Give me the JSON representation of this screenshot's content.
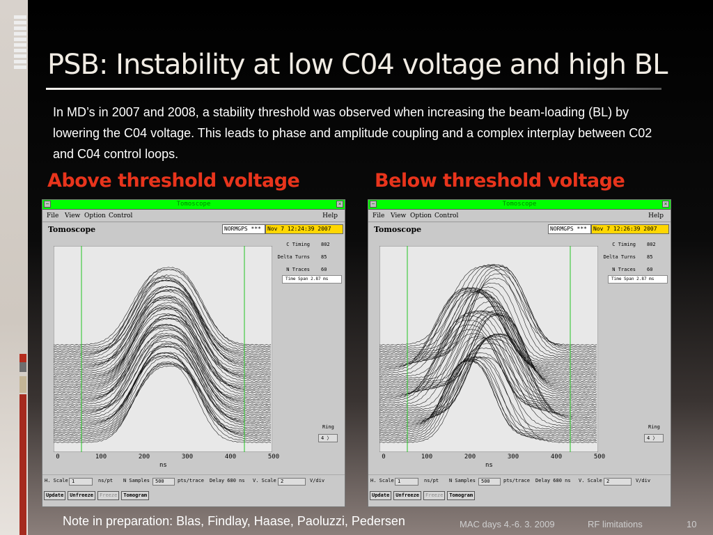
{
  "slide": {
    "title": "PSB: Instability at low C04 voltage and high BL",
    "intro": "In MD’s in 2007 and 2008, a stability threshold was observed when increasing the beam-loading  (BL) by lowering the C04 voltage. This leads to phase and amplitude coupling and a complex interplay between C02 and C04 control loops.",
    "label_above": "Above threshold voltage",
    "label_below": "Below threshold voltage",
    "note": "Note in preparation: Blas, Findlay, Haase, Paoluzzi, Pedersen",
    "footer_event": "MAC days 4.-6. 3. 2009",
    "footer_topic": "RF limitations",
    "footer_page": "10"
  },
  "colors": {
    "title_text": "#f1ece4",
    "section_label": "#e8341c",
    "window_titlebar": "#00ff00",
    "date_field": "#ffd700",
    "plot_bg": "#e8e8e8",
    "marker_line": "#22c422"
  },
  "windows": [
    {
      "title": "Tomoscope",
      "menu": [
        "File",
        "View",
        "Option",
        "Control",
        "Help"
      ],
      "app_name": "Tomoscope",
      "device": "NORMGPS ***",
      "date": "Nov  7 12:24:39 2007",
      "c_timing_label": "C Timing",
      "c_timing": "802",
      "delta_turns_label": "Delta Turns",
      "delta_turns": "85",
      "n_traces_label": "N Traces",
      "n_traces": "60",
      "time_span": "Time Span 2.87 ms",
      "ring_label": "Ring",
      "ring": "4",
      "x_ticks": [
        "0",
        "100",
        "200",
        "300",
        "400",
        "500"
      ],
      "x_label": "ns",
      "h_scale_label": "H. Scale",
      "h_scale": "1",
      "h_scale_unit": "ns/pt",
      "n_samples_label": "N Samples",
      "n_samples": "500",
      "n_samples_unit": "pts/trace",
      "delay": "Delay  680 ns",
      "v_scale_label": "V. Scale",
      "v_scale": "2",
      "v_scale_unit": "V/div",
      "buttons": [
        "Update",
        "Unfreeze",
        "Freeze",
        "Tomogram"
      ],
      "shape": "above"
    },
    {
      "title": "Tomoscope",
      "menu": [
        "File",
        "View",
        "Option",
        "Control",
        "Help"
      ],
      "app_name": "Tomoscope",
      "device": "NORMGPS ***",
      "date": "Nov  7 12:26:39 2007",
      "c_timing_label": "C Timing",
      "c_timing": "802",
      "delta_turns_label": "Delta Turns",
      "delta_turns": "85",
      "n_traces_label": "N Traces",
      "n_traces": "60",
      "time_span": "Time Span 2.87 ms",
      "ring_label": "Ring",
      "ring": "4",
      "x_ticks": [
        "0",
        "100",
        "200",
        "300",
        "400",
        "500"
      ],
      "x_label": "ns",
      "h_scale_label": "H. Scale",
      "h_scale": "1",
      "h_scale_unit": "ns/pt",
      "n_samples_label": "N Samples",
      "n_samples": "500",
      "n_samples_unit": "pts/trace",
      "delay": "Delay  680 ns",
      "v_scale_label": "V. Scale",
      "v_scale": "2",
      "v_scale_unit": "V/div",
      "buttons": [
        "Update",
        "Unfreeze",
        "Freeze",
        "Tomogram"
      ],
      "shape": "below"
    }
  ]
}
